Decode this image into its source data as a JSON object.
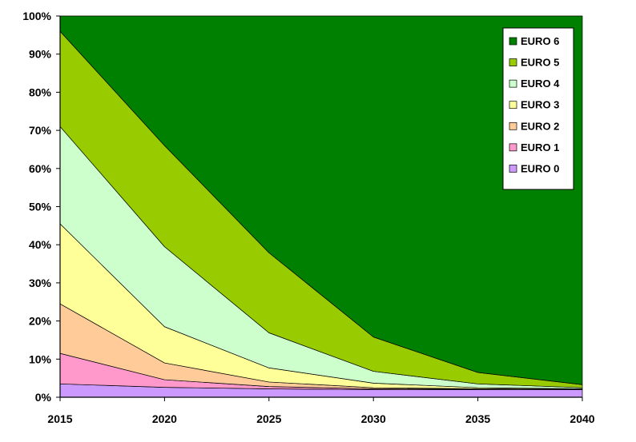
{
  "chart_data": {
    "type": "area",
    "stacked": true,
    "percent": true,
    "x": [
      "2015",
      "2020",
      "2025",
      "2030",
      "2035",
      "2040"
    ],
    "ylim": [
      0,
      100
    ],
    "yticks": [
      "0%",
      "10%",
      "20%",
      "30%",
      "40%",
      "50%",
      "60%",
      "70%",
      "80%",
      "90%",
      "100%"
    ],
    "legend_position": "top-right",
    "grid": false,
    "series": [
      {
        "name": "EURO 0",
        "color": "#cc99ff",
        "values": [
          3.5,
          2.6,
          2.2,
          2.0,
          2.0,
          2.0
        ]
      },
      {
        "name": "EURO 1",
        "color": "#ff99cc",
        "values": [
          8.0,
          2.0,
          0.6,
          0.2,
          0.1,
          0.05
        ]
      },
      {
        "name": "EURO 2",
        "color": "#ffcc99",
        "values": [
          13.0,
          4.4,
          1.2,
          0.3,
          0.1,
          0.05
        ]
      },
      {
        "name": "EURO 3",
        "color": "#ffff99",
        "values": [
          21.0,
          9.5,
          3.7,
          1.2,
          0.3,
          0.1
        ]
      },
      {
        "name": "EURO 4",
        "color": "#ccffcc",
        "values": [
          25.5,
          21.0,
          9.2,
          3.1,
          1.0,
          0.3
        ]
      },
      {
        "name": "EURO 5",
        "color": "#99cc00",
        "values": [
          25.0,
          26.5,
          21.0,
          9.0,
          3.0,
          0.8
        ]
      },
      {
        "name": "EURO 6",
        "color": "#008000",
        "values": [
          4.0,
          34.0,
          62.1,
          84.2,
          93.5,
          96.7
        ]
      }
    ]
  }
}
